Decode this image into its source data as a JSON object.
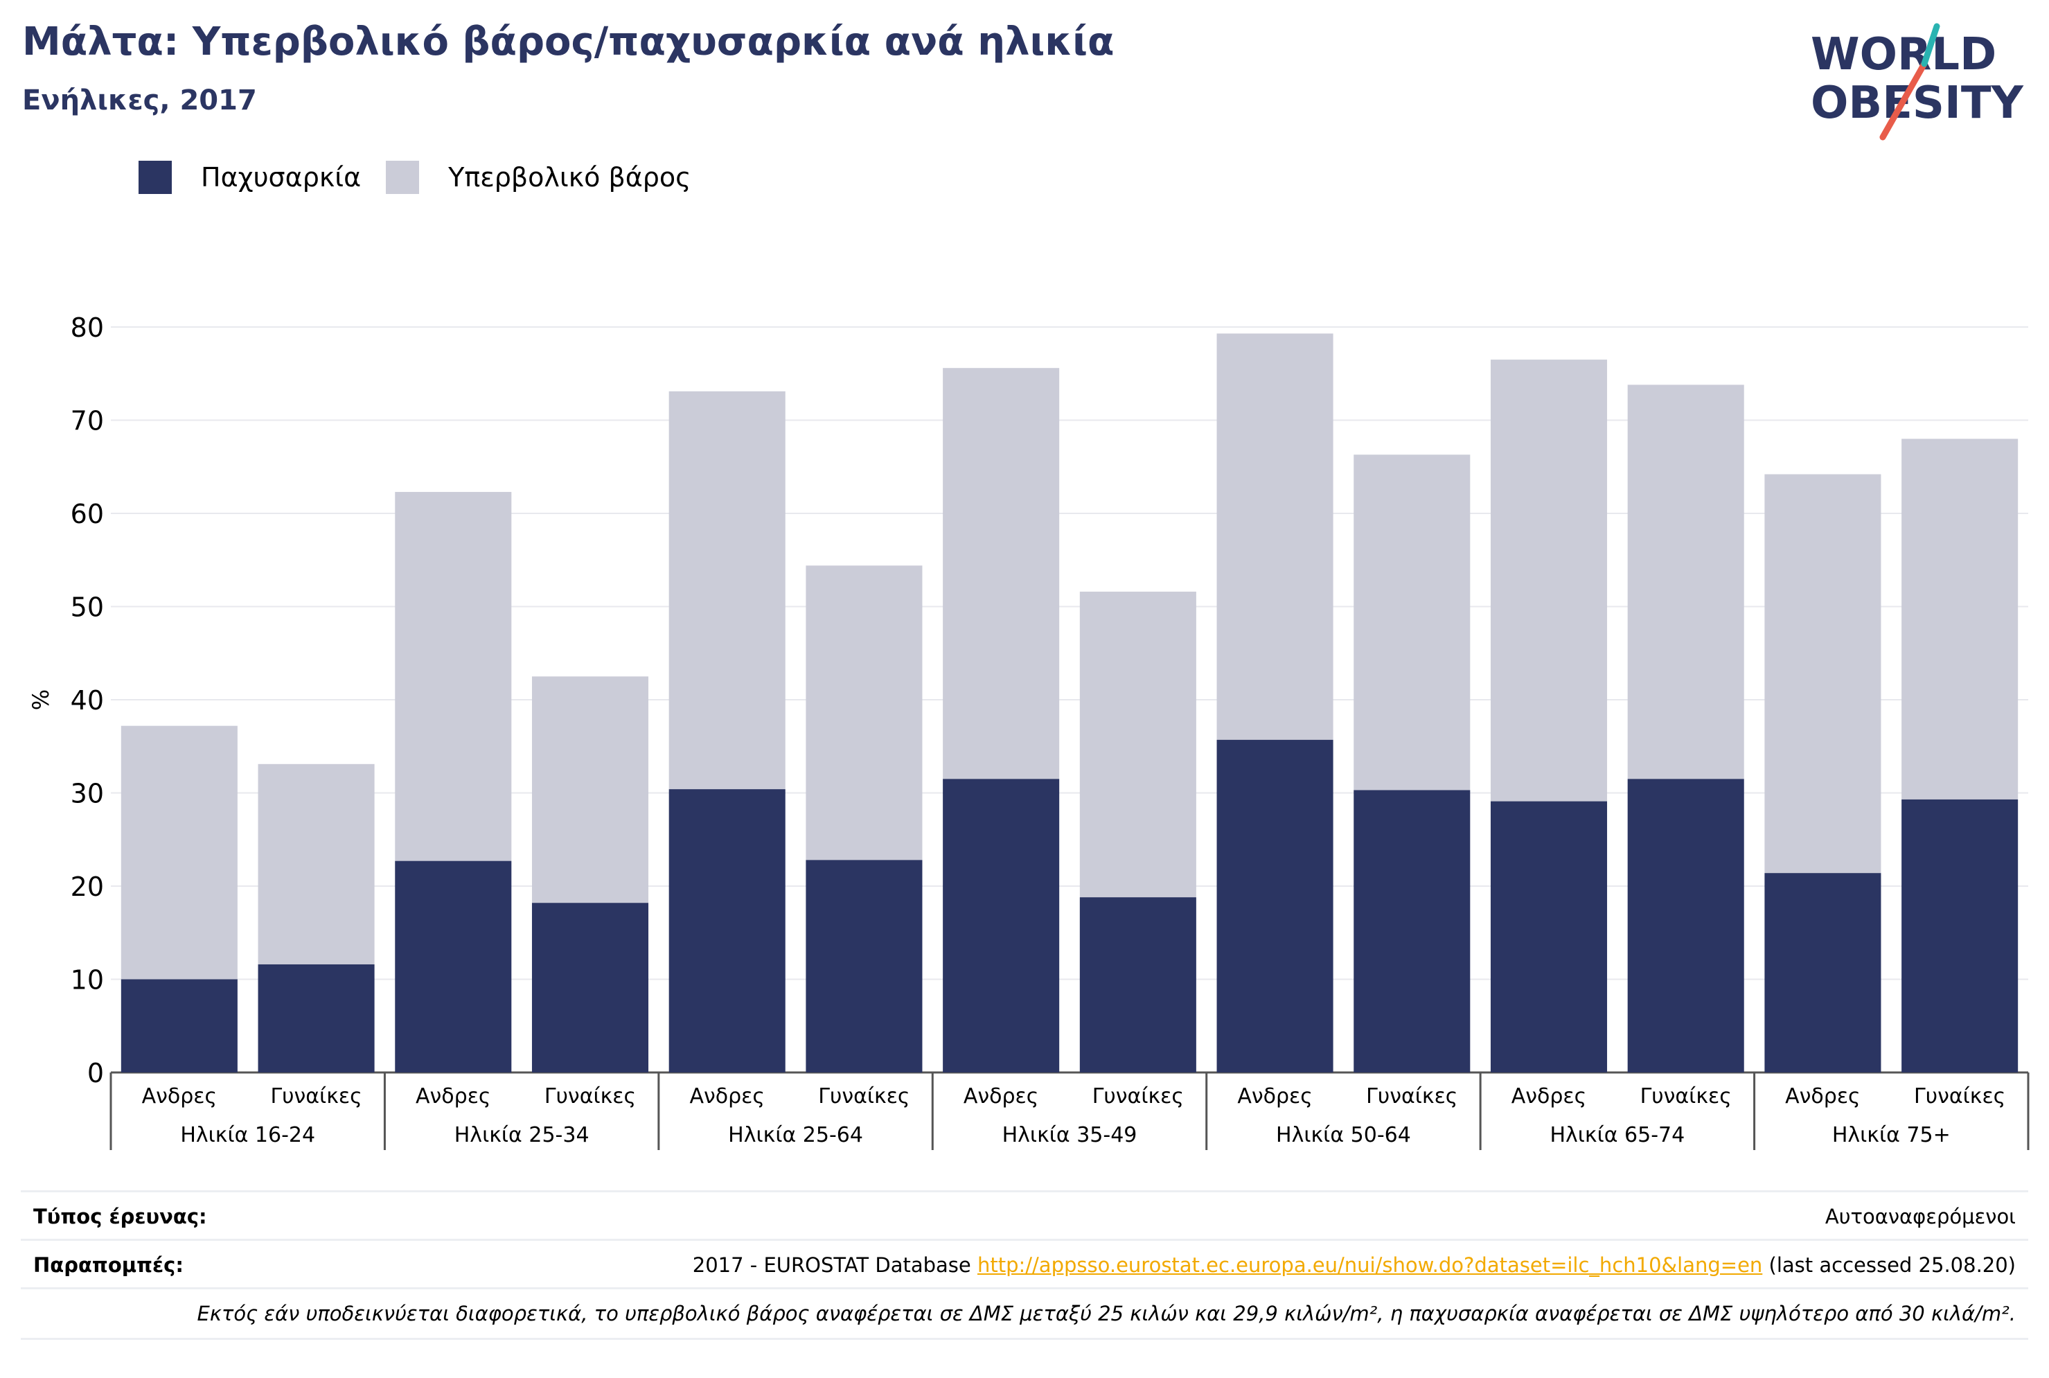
{
  "header": {
    "title": "Μάλτα: Υπερβολικό βάρος/παχυσαρκία ανά ηλικία",
    "subtitle": "Ενήλικες, 2017"
  },
  "logo": {
    "line1": "WORLD",
    "line2": "OBESITY"
  },
  "legend": {
    "obesity": "Παχυσαρκία",
    "overweight": "Υπερβολικό βάρος"
  },
  "colors": {
    "obesity": "#2b3562",
    "overweight": "#cbccd8",
    "accent_teal": "#2ab3b1",
    "accent_red": "#e85c4a",
    "link": "#f2a900"
  },
  "chart_data": {
    "type": "bar",
    "stacked": true,
    "ylabel": "%",
    "ylim": [
      0,
      80
    ],
    "yticks": [
      0,
      10,
      20,
      30,
      40,
      50,
      60,
      70,
      80
    ],
    "grid": true,
    "legend_position": "top-left",
    "groups": [
      "Ηλικία 16-24",
      "Ηλικία 25-34",
      "Ηλικία 25-64",
      "Ηλικία 35-49",
      "Ηλικία 50-64",
      "Ηλικία 65-74",
      "Ηλικία 75+"
    ],
    "categories": [
      "Ανδρες",
      "Γυναίκες",
      "Ανδρες",
      "Γυναίκες",
      "Ανδρες",
      "Γυναίκες",
      "Ανδρες",
      "Γυναίκες",
      "Ανδρες",
      "Γυναίκες",
      "Ανδρες",
      "Γυναίκες",
      "Ανδρες",
      "Γυναίκες"
    ],
    "series": [
      {
        "name": "Παχυσαρκία",
        "values": [
          10.0,
          11.6,
          22.7,
          18.2,
          30.4,
          22.8,
          31.5,
          18.8,
          35.7,
          30.3,
          29.1,
          31.5,
          21.4,
          29.3
        ]
      },
      {
        "name": "Υπερβολικό βάρος",
        "values": [
          27.2,
          21.5,
          39.6,
          24.3,
          42.7,
          31.6,
          44.1,
          32.8,
          43.6,
          36.0,
          47.4,
          42.3,
          42.8,
          38.7
        ]
      }
    ]
  },
  "footer": {
    "survey_label": "Τύπος έρευνας:",
    "survey_value": "Αυτοαναφερόμενοι",
    "refs_label": "Παραπομπές:",
    "refs_prefix": "2017 - EUROSTAT Database ",
    "refs_link": "http://appsso.eurostat.ec.europa.eu/nui/show.do?dataset=ilc_hch10&lang=en",
    "refs_suffix": " (last accessed 25.08.20)",
    "note": "Εκτός εάν υποδεικνύεται διαφορετικά, το υπερβολικό βάρος αναφέρεται σε ΔΜΣ μεταξύ 25 κιλών και 29,9 κιλών/m², η παχυσαρκία αναφέρεται σε ΔΜΣ υψηλότερο από 30 κιλά/m²."
  }
}
